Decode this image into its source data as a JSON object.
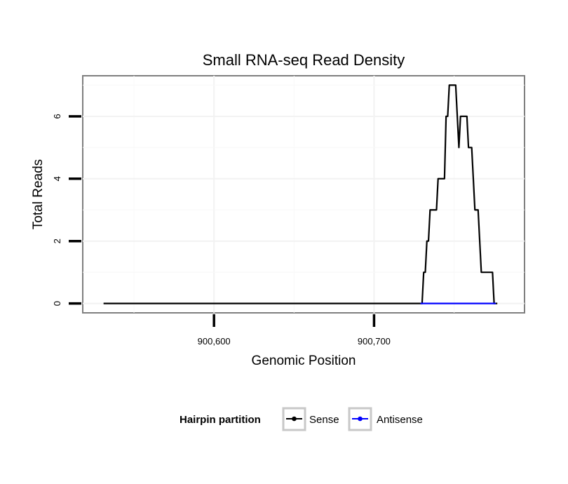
{
  "chart_data": {
    "type": "line",
    "title": "Small RNA-seq Read Density",
    "xlabel": "Genomic Position",
    "ylabel": "Total Reads",
    "xlim": [
      900518,
      900794
    ],
    "ylim": [
      -0.3,
      7.3
    ],
    "xticks": [
      900600,
      900700
    ],
    "xtick_labels": [
      "900,600",
      "900,700"
    ],
    "yticks": [
      0,
      2,
      4,
      6
    ],
    "ytick_labels": [
      "0",
      "2",
      "4",
      "6"
    ],
    "grid": true,
    "legend": {
      "title": "Hairpin partition",
      "placement": "bottom"
    },
    "series": [
      {
        "name": "Sense",
        "color": "#000000",
        "x": [
          900531,
          900729,
          900730,
          900731,
          900732,
          900733,
          900734,
          900735,
          900736,
          900737,
          900738,
          900739,
          900740,
          900741,
          900742,
          900743,
          900744,
          900745,
          900746,
          900747,
          900748,
          900749,
          900750,
          900751,
          900752,
          900753,
          900754,
          900755,
          900756,
          900757,
          900758,
          900759,
          900760,
          900761,
          900762,
          900763,
          900764,
          900765,
          900766,
          900767,
          900768,
          900769,
          900770,
          900771,
          900772,
          900773,
          900774,
          900775,
          900776,
          900777
        ],
        "y": [
          0,
          0,
          0,
          1,
          1,
          2,
          2,
          3,
          3,
          3,
          3,
          3,
          4,
          4,
          4,
          4,
          4,
          6,
          6,
          7,
          7,
          7,
          7,
          7,
          6,
          5,
          6,
          6,
          6,
          6,
          6,
          5,
          5,
          5,
          4,
          3,
          3,
          3,
          2,
          1,
          1,
          1,
          1,
          1,
          1,
          1,
          1,
          0,
          0,
          0
        ]
      },
      {
        "name": "Antisense",
        "color": "#0000ff",
        "x": [
          900729,
          900776
        ],
        "y": [
          0,
          0
        ]
      }
    ]
  }
}
